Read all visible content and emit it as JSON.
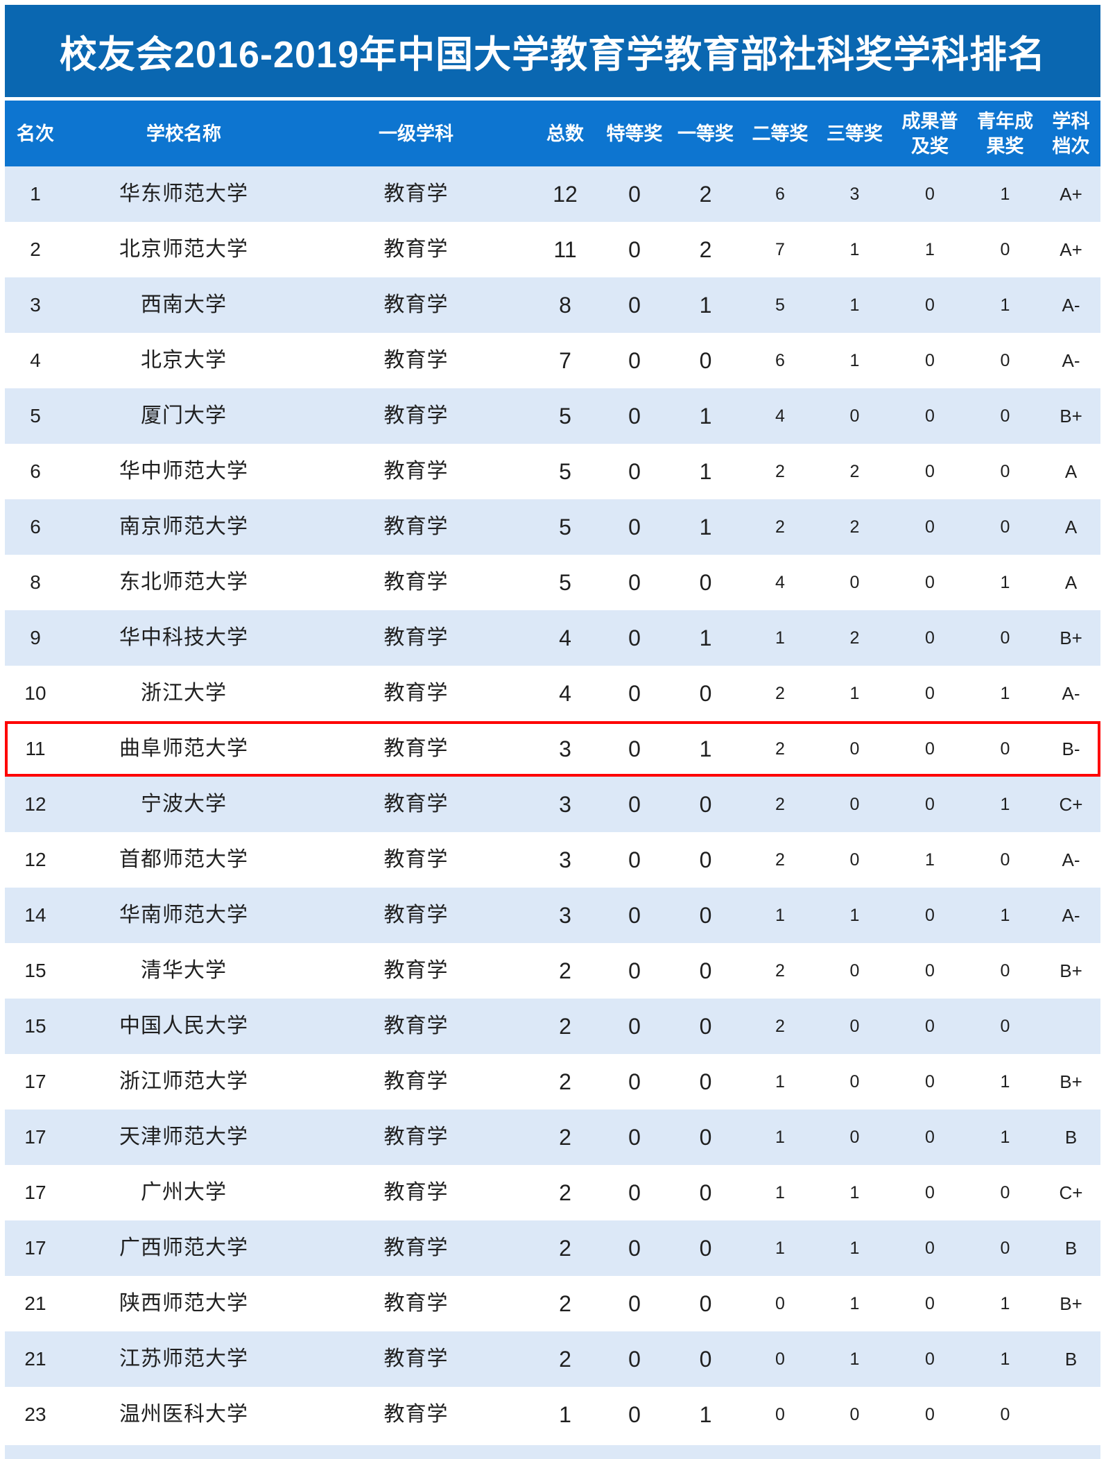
{
  "title": "校友会2016-2019年中国大学教育学教育部社科奖学科排名",
  "colors": {
    "title_bg": "#0a67b1",
    "header_bg": "#0d75d0",
    "shaded_row_bg": "#dce8f7",
    "highlight_border": "#fe0000",
    "header_text": "#ffffff",
    "body_text": "#1f1f1f"
  },
  "table": {
    "columns": [
      {
        "key": "rank",
        "label": "名次",
        "lines": [
          "名次"
        ]
      },
      {
        "key": "school",
        "label": "学校名称",
        "lines": [
          "学校名称"
        ]
      },
      {
        "key": "discipline",
        "label": "一级学科",
        "lines": [
          "一级学科"
        ]
      },
      {
        "key": "total",
        "label": "总数",
        "lines": [
          "总数"
        ]
      },
      {
        "key": "special",
        "label": "特等奖",
        "lines": [
          "特等奖"
        ]
      },
      {
        "key": "first",
        "label": "一等奖",
        "lines": [
          "一等奖"
        ]
      },
      {
        "key": "second",
        "label": "二等奖",
        "lines": [
          "二等奖"
        ]
      },
      {
        "key": "third",
        "label": "三等奖",
        "lines": [
          "三等奖"
        ]
      },
      {
        "key": "popular",
        "label": "成果普及奖",
        "lines": [
          "成果普",
          "及奖"
        ]
      },
      {
        "key": "youth",
        "label": "青年成果奖",
        "lines": [
          "青年成",
          "果奖"
        ]
      },
      {
        "key": "grade",
        "label": "学科档次",
        "lines": [
          "学科",
          "档次"
        ]
      }
    ],
    "rows": [
      {
        "rank": "1",
        "school": "华东师范大学",
        "discipline": "教育学",
        "total": "12",
        "special": "0",
        "first": "2",
        "second": "6",
        "third": "3",
        "popular": "0",
        "youth": "1",
        "grade": "A+",
        "shaded": true,
        "highlight": false
      },
      {
        "rank": "2",
        "school": "北京师范大学",
        "discipline": "教育学",
        "total": "11",
        "special": "0",
        "first": "2",
        "second": "7",
        "third": "1",
        "popular": "1",
        "youth": "0",
        "grade": "A+",
        "shaded": false,
        "highlight": false
      },
      {
        "rank": "3",
        "school": "西南大学",
        "discipline": "教育学",
        "total": "8",
        "special": "0",
        "first": "1",
        "second": "5",
        "third": "1",
        "popular": "0",
        "youth": "1",
        "grade": "A-",
        "shaded": true,
        "highlight": false
      },
      {
        "rank": "4",
        "school": "北京大学",
        "discipline": "教育学",
        "total": "7",
        "special": "0",
        "first": "0",
        "second": "6",
        "third": "1",
        "popular": "0",
        "youth": "0",
        "grade": "A-",
        "shaded": false,
        "highlight": false
      },
      {
        "rank": "5",
        "school": "厦门大学",
        "discipline": "教育学",
        "total": "5",
        "special": "0",
        "first": "1",
        "second": "4",
        "third": "0",
        "popular": "0",
        "youth": "0",
        "grade": "B+",
        "shaded": true,
        "highlight": false
      },
      {
        "rank": "6",
        "school": "华中师范大学",
        "discipline": "教育学",
        "total": "5",
        "special": "0",
        "first": "1",
        "second": "2",
        "third": "2",
        "popular": "0",
        "youth": "0",
        "grade": "A",
        "shaded": false,
        "highlight": false
      },
      {
        "rank": "6",
        "school": "南京师范大学",
        "discipline": "教育学",
        "total": "5",
        "special": "0",
        "first": "1",
        "second": "2",
        "third": "2",
        "popular": "0",
        "youth": "0",
        "grade": "A",
        "shaded": true,
        "highlight": false
      },
      {
        "rank": "8",
        "school": "东北师范大学",
        "discipline": "教育学",
        "total": "5",
        "special": "0",
        "first": "0",
        "second": "4",
        "third": "0",
        "popular": "0",
        "youth": "1",
        "grade": "A",
        "shaded": false,
        "highlight": false
      },
      {
        "rank": "9",
        "school": "华中科技大学",
        "discipline": "教育学",
        "total": "4",
        "special": "0",
        "first": "1",
        "second": "1",
        "third": "2",
        "popular": "0",
        "youth": "0",
        "grade": "B+",
        "shaded": true,
        "highlight": false
      },
      {
        "rank": "10",
        "school": "浙江大学",
        "discipline": "教育学",
        "total": "4",
        "special": "0",
        "first": "0",
        "second": "2",
        "third": "1",
        "popular": "0",
        "youth": "1",
        "grade": "A-",
        "shaded": false,
        "highlight": false
      },
      {
        "rank": "11",
        "school": "曲阜师范大学",
        "discipline": "教育学",
        "total": "3",
        "special": "0",
        "first": "1",
        "second": "2",
        "third": "0",
        "popular": "0",
        "youth": "0",
        "grade": "B-",
        "shaded": false,
        "highlight": true
      },
      {
        "rank": "12",
        "school": "宁波大学",
        "discipline": "教育学",
        "total": "3",
        "special": "0",
        "first": "0",
        "second": "2",
        "third": "0",
        "popular": "0",
        "youth": "1",
        "grade": "C+",
        "shaded": true,
        "highlight": false
      },
      {
        "rank": "12",
        "school": "首都师范大学",
        "discipline": "教育学",
        "total": "3",
        "special": "0",
        "first": "0",
        "second": "2",
        "third": "0",
        "popular": "1",
        "youth": "0",
        "grade": "A-",
        "shaded": false,
        "highlight": false
      },
      {
        "rank": "14",
        "school": "华南师范大学",
        "discipline": "教育学",
        "total": "3",
        "special": "0",
        "first": "0",
        "second": "1",
        "third": "1",
        "popular": "0",
        "youth": "1",
        "grade": "A-",
        "shaded": true,
        "highlight": false
      },
      {
        "rank": "15",
        "school": "清华大学",
        "discipline": "教育学",
        "total": "2",
        "special": "0",
        "first": "0",
        "second": "2",
        "third": "0",
        "popular": "0",
        "youth": "0",
        "grade": "B+",
        "shaded": false,
        "highlight": false
      },
      {
        "rank": "15",
        "school": "中国人民大学",
        "discipline": "教育学",
        "total": "2",
        "special": "0",
        "first": "0",
        "second": "2",
        "third": "0",
        "popular": "0",
        "youth": "0",
        "grade": "",
        "shaded": true,
        "highlight": false
      },
      {
        "rank": "17",
        "school": "浙江师范大学",
        "discipline": "教育学",
        "total": "2",
        "special": "0",
        "first": "0",
        "second": "1",
        "third": "0",
        "popular": "0",
        "youth": "1",
        "grade": "B+",
        "shaded": false,
        "highlight": false
      },
      {
        "rank": "17",
        "school": "天津师范大学",
        "discipline": "教育学",
        "total": "2",
        "special": "0",
        "first": "0",
        "second": "1",
        "third": "0",
        "popular": "0",
        "youth": "1",
        "grade": "B",
        "shaded": true,
        "highlight": false
      },
      {
        "rank": "17",
        "school": "广州大学",
        "discipline": "教育学",
        "total": "2",
        "special": "0",
        "first": "0",
        "second": "1",
        "third": "1",
        "popular": "0",
        "youth": "0",
        "grade": "C+",
        "shaded": false,
        "highlight": false
      },
      {
        "rank": "17",
        "school": "广西师范大学",
        "discipline": "教育学",
        "total": "2",
        "special": "0",
        "first": "0",
        "second": "1",
        "third": "1",
        "popular": "0",
        "youth": "0",
        "grade": "B",
        "shaded": true,
        "highlight": false
      },
      {
        "rank": "21",
        "school": "陕西师范大学",
        "discipline": "教育学",
        "total": "2",
        "special": "0",
        "first": "0",
        "second": "0",
        "third": "1",
        "popular": "0",
        "youth": "1",
        "grade": "B+",
        "shaded": false,
        "highlight": false
      },
      {
        "rank": "21",
        "school": "江苏师范大学",
        "discipline": "教育学",
        "total": "2",
        "special": "0",
        "first": "0",
        "second": "0",
        "third": "1",
        "popular": "0",
        "youth": "1",
        "grade": "B",
        "shaded": true,
        "highlight": false
      },
      {
        "rank": "23",
        "school": "温州医科大学",
        "discipline": "教育学",
        "total": "1",
        "special": "0",
        "first": "1",
        "second": "0",
        "third": "0",
        "popular": "0",
        "youth": "0",
        "grade": "",
        "shaded": false,
        "highlight": false
      }
    ]
  }
}
